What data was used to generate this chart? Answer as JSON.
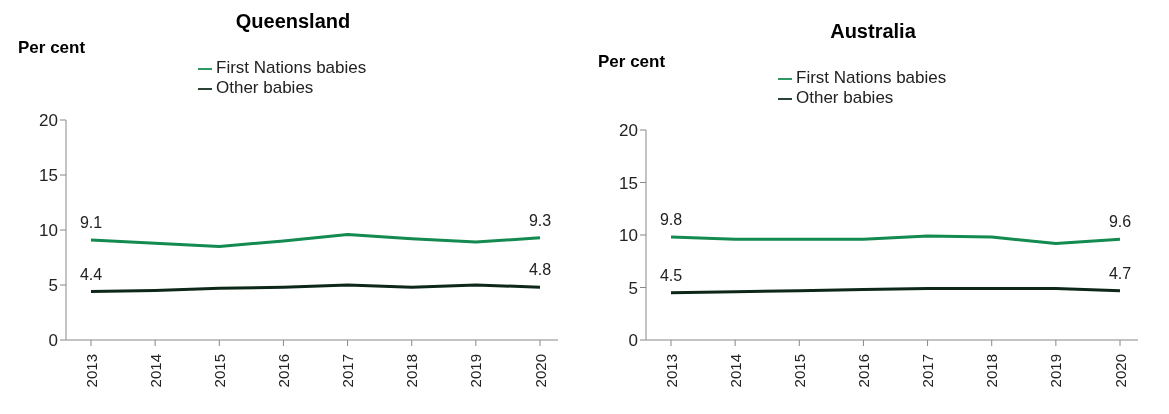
{
  "chart_data": [
    {
      "type": "line",
      "title": "Queensland",
      "ylabel": "Per cent",
      "categories": [
        "2013",
        "2014",
        "2015",
        "2016",
        "2017",
        "2018",
        "2019",
        "2020"
      ],
      "series": [
        {
          "name": "First Nations babies",
          "color": "#138a4f",
          "values": [
            9.1,
            8.8,
            8.5,
            9.0,
            9.6,
            9.2,
            8.9,
            9.3
          ],
          "value_labels": [
            "9.1",
            null,
            null,
            null,
            null,
            null,
            null,
            "9.3"
          ]
        },
        {
          "name": "Other babies",
          "color": "#0d2818",
          "values": [
            4.4,
            4.5,
            4.7,
            4.8,
            5.0,
            4.8,
            5.0,
            4.8
          ],
          "value_labels": [
            "4.4",
            null,
            null,
            null,
            null,
            null,
            null,
            "4.8"
          ]
        }
      ],
      "ylim": [
        0,
        20
      ],
      "yticks": [
        0,
        5,
        10,
        15,
        20
      ],
      "grid": false,
      "legend": "top",
      "marker": "none",
      "line_style": "solid"
    },
    {
      "type": "line",
      "title": "Australia",
      "ylabel": "Per cent",
      "categories": [
        "2013",
        "2014",
        "2015",
        "2016",
        "2017",
        "2018",
        "2019",
        "2020"
      ],
      "series": [
        {
          "name": "First Nations babies",
          "color": "#138a4f",
          "values": [
            9.8,
            9.6,
            9.6,
            9.6,
            9.9,
            9.8,
            9.2,
            9.6
          ],
          "value_labels": [
            "9.8",
            null,
            null,
            null,
            null,
            null,
            null,
            "9.6"
          ]
        },
        {
          "name": "Other babies",
          "color": "#0d2818",
          "values": [
            4.5,
            4.6,
            4.7,
            4.8,
            4.9,
            4.9,
            4.9,
            4.7
          ],
          "value_labels": [
            "4.5",
            null,
            null,
            null,
            null,
            null,
            null,
            "4.7"
          ]
        }
      ],
      "ylim": [
        0,
        20
      ],
      "yticks": [
        0,
        5,
        10,
        15,
        20
      ],
      "grid": false,
      "legend": "top",
      "marker": "none",
      "line_style": "solid"
    }
  ]
}
